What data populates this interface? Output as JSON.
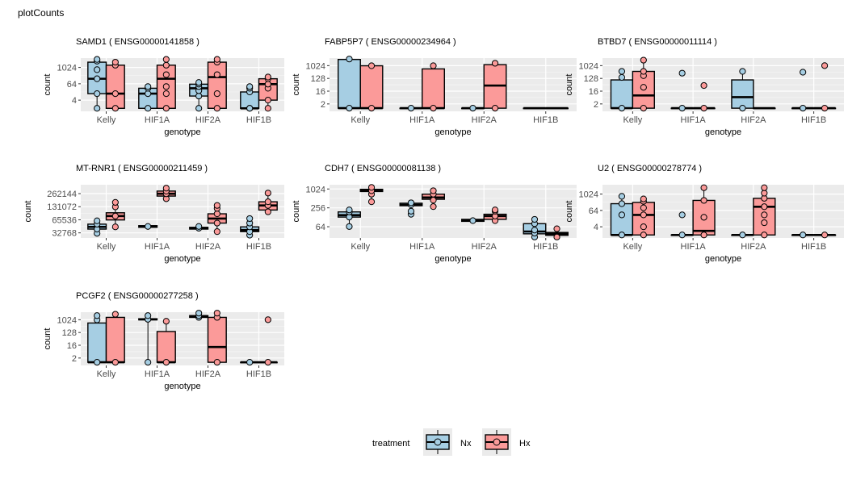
{
  "page": {
    "title": "plotCounts"
  },
  "legend": {
    "title": "treatment",
    "items": [
      {
        "label": "Nx",
        "color": "#a6cee3"
      },
      {
        "label": "Hx",
        "color": "#fb9a99"
      }
    ]
  },
  "chart_data": [
    {
      "type": "boxplot",
      "title": "SAMD1 ( ENSG00000141858 )",
      "xlabel": "genotype",
      "ylabel": "count",
      "log_scale": true,
      "categories": [
        "Kelly",
        "HIF1A",
        "HIF2A",
        "HIF1B"
      ],
      "yticks": [
        4,
        64,
        1024
      ],
      "ylim": [
        0.6,
        5000
      ],
      "series": [
        {
          "name": "Nx",
          "boxes": [
            {
              "q1": 12,
              "median": 150,
              "q3": 2500,
              "min": 1,
              "max": 5000,
              "points": [
                1,
                12,
                150,
                700,
                3000,
                4000
              ]
            },
            {
              "q1": 1,
              "median": 12,
              "q3": 30,
              "min": 1,
              "max": 40,
              "points": [
                1,
                12,
                30,
                40
              ]
            },
            {
              "q1": 8,
              "median": 30,
              "q3": 60,
              "min": 1,
              "max": 80,
              "points": [
                1,
                8,
                20,
                40,
                60,
                80
              ]
            },
            {
              "q1": 1,
              "median": 1,
              "q3": 16,
              "min": 1,
              "max": 40,
              "points": [
                1,
                1,
                16,
                30,
                40
              ]
            }
          ]
        },
        {
          "name": "Hx",
          "boxes": [
            {
              "q1": 1,
              "median": 12,
              "q3": 1500,
              "min": 1,
              "max": 2500,
              "points": [
                1,
                12,
                1500,
                2500
              ]
            },
            {
              "q1": 1,
              "median": 150,
              "q3": 1500,
              "min": 1,
              "max": 4000,
              "points": [
                1,
                12,
                40,
                300,
                1500,
                4000
              ]
            },
            {
              "q1": 1,
              "median": 200,
              "q3": 2500,
              "min": 1,
              "max": 4000,
              "points": [
                1,
                12,
                300,
                2500,
                4000
              ]
            },
            {
              "q1": 4,
              "median": 60,
              "q3": 150,
              "min": 1,
              "max": 200,
              "points": [
                1,
                4,
                30,
                60,
                150,
                200
              ]
            }
          ]
        }
      ]
    },
    {
      "type": "boxplot",
      "title": "FABP5P7 ( ENSG00000234964 )",
      "xlabel": "genotype",
      "ylabel": "count",
      "log_scale": true,
      "categories": [
        "Kelly",
        "HIF1A",
        "HIF2A",
        "HIF1B"
      ],
      "yticks": [
        2,
        16,
        128,
        1024
      ],
      "ylim": [
        0.6,
        3500
      ],
      "series": [
        {
          "name": "Nx",
          "boxes": [
            {
              "q1": 1,
              "median": 1,
              "q3": 2800,
              "min": 1,
              "max": 3000,
              "points": [
                1,
                3000
              ]
            },
            {
              "q1": 1,
              "median": 1,
              "q3": 1,
              "min": 1,
              "max": 1,
              "points": [
                1
              ]
            },
            {
              "q1": 1,
              "median": 1,
              "q3": 1,
              "min": 1,
              "max": 1,
              "points": [
                1
              ]
            },
            {
              "q1": 1,
              "median": 1,
              "q3": 1,
              "min": 1,
              "max": 1,
              "points": []
            }
          ]
        },
        {
          "name": "Hx",
          "boxes": [
            {
              "q1": 1,
              "median": 1,
              "q3": 1000,
              "min": 1,
              "max": 1000,
              "points": [
                1,
                1000
              ]
            },
            {
              "q1": 1,
              "median": 1,
              "q3": 600,
              "min": 1,
              "max": 1000,
              "points": [
                1,
                1000
              ]
            },
            {
              "q1": 1,
              "median": 40,
              "q3": 1200,
              "min": 1,
              "max": 1500,
              "points": [
                1,
                1500
              ]
            },
            {
              "q1": 1,
              "median": 1,
              "q3": 1,
              "min": 1,
              "max": 1,
              "points": []
            }
          ]
        }
      ]
    },
    {
      "type": "boxplot",
      "title": "BTBD7 ( ENSG00000011114 )",
      "xlabel": "genotype",
      "ylabel": "count",
      "log_scale": true,
      "categories": [
        "Kelly",
        "HIF1A",
        "HIF2A",
        "HIF1B"
      ],
      "yticks": [
        2,
        16,
        128,
        1024
      ],
      "ylim": [
        0.6,
        3500
      ],
      "series": [
        {
          "name": "Nx",
          "boxes": [
            {
              "q1": 1,
              "median": 1,
              "q3": 100,
              "min": 1,
              "max": 400,
              "points": [
                1,
                150,
                400
              ]
            },
            {
              "q1": 1,
              "median": 1,
              "q3": 1,
              "min": 1,
              "max": 1,
              "points": [
                1,
                300
              ]
            },
            {
              "q1": 1,
              "median": 6,
              "q3": 100,
              "min": 1,
              "max": 400,
              "points": [
                1,
                400
              ]
            },
            {
              "q1": 1,
              "median": 1,
              "q3": 1,
              "min": 1,
              "max": 1,
              "points": [
                1,
                350
              ]
            }
          ]
        },
        {
          "name": "Hx",
          "boxes": [
            {
              "q1": 1,
              "median": 8,
              "q3": 400,
              "min": 1,
              "max": 2500,
              "points": [
                1,
                30,
                200,
                400,
                2500
              ]
            },
            {
              "q1": 1,
              "median": 1,
              "q3": 1,
              "min": 1,
              "max": 1,
              "points": [
                1,
                40
              ]
            },
            {
              "q1": 1,
              "median": 1,
              "q3": 1,
              "min": 1,
              "max": 1,
              "points": []
            },
            {
              "q1": 1,
              "median": 1,
              "q3": 1,
              "min": 1,
              "max": 1,
              "points": [
                1,
                1024
              ]
            }
          ]
        }
      ]
    },
    {
      "type": "boxplot",
      "title": "MT-RNR1 ( ENSG00000211459 )",
      "xlabel": "genotype",
      "ylabel": "count",
      "log_scale": true,
      "categories": [
        "Kelly",
        "HIF1A",
        "HIF2A",
        "HIF1B"
      ],
      "yticks": [
        32768,
        65536,
        131072,
        262144
      ],
      "ylim": [
        25000,
        420000
      ],
      "series": [
        {
          "name": "Nx",
          "boxes": [
            {
              "q1": 40000,
              "median": 45000,
              "q3": 52000,
              "min": 32000,
              "max": 62000,
              "points": [
                32000,
                40000,
                52000,
                62000
              ]
            },
            {
              "q1": 44000,
              "median": 46000,
              "q3": 48000,
              "min": 44000,
              "max": 48000,
              "points": [
                46000
              ]
            },
            {
              "q1": 40000,
              "median": 42000,
              "q3": 44000,
              "min": 39000,
              "max": 48000,
              "points": [
                42000,
                46000
              ]
            },
            {
              "q1": 35000,
              "median": 38000,
              "q3": 45000,
              "min": 29000,
              "max": 70000,
              "points": [
                29000,
                35000,
                45000,
                55000,
                70000
              ]
            }
          ]
        },
        {
          "name": "Hx",
          "boxes": [
            {
              "q1": 65000,
              "median": 80000,
              "q3": 95000,
              "min": 45000,
              "max": 165000,
              "points": [
                45000,
                80000,
                130000,
                165000
              ]
            },
            {
              "q1": 230000,
              "median": 260000,
              "q3": 300000,
              "min": 200000,
              "max": 350000,
              "points": [
                200000,
                260000,
                300000,
                350000
              ]
            },
            {
              "q1": 55000,
              "median": 70000,
              "q3": 90000,
              "min": 35000,
              "max": 140000,
              "points": [
                35000,
                55000,
                90000,
                120000,
                140000
              ]
            },
            {
              "q1": 110000,
              "median": 140000,
              "q3": 170000,
              "min": 100000,
              "max": 270000,
              "points": [
                100000,
                140000,
                170000,
                270000
              ]
            }
          ]
        }
      ]
    },
    {
      "type": "boxplot",
      "title": "CDH7 ( ENSG00000081138 )",
      "xlabel": "genotype",
      "ylabel": "count",
      "log_scale": true,
      "categories": [
        "Kelly",
        "HIF1A",
        "HIF2A",
        "HIF1B"
      ],
      "yticks": [
        64,
        256,
        1024
      ],
      "ylim": [
        28,
        1400
      ],
      "series": [
        {
          "name": "Nx",
          "boxes": [
            {
              "q1": 130,
              "median": 150,
              "q3": 190,
              "min": 65,
              "max": 220,
              "points": [
                65,
                130,
                190,
                220
              ]
            },
            {
              "q1": 300,
              "median": 320,
              "q3": 360,
              "min": 160,
              "max": 370,
              "points": [
                160,
                200,
                320,
                370
              ]
            },
            {
              "q1": 95,
              "median": 100,
              "q3": 110,
              "min": 90,
              "max": 110,
              "points": [
                100
              ]
            },
            {
              "q1": 38,
              "median": 45,
              "q3": 80,
              "min": 30,
              "max": 110,
              "points": [
                30,
                40,
                50,
                80,
                110
              ]
            }
          ]
        },
        {
          "name": "Hx",
          "boxes": [
            {
              "q1": 850,
              "median": 900,
              "q3": 1000,
              "min": 400,
              "max": 1150,
              "points": [
                400,
                700,
                900,
                1150
              ]
            },
            {
              "q1": 480,
              "median": 550,
              "q3": 700,
              "min": 280,
              "max": 900,
              "points": [
                280,
                450,
                700,
                900
              ]
            },
            {
              "q1": 110,
              "median": 140,
              "q3": 160,
              "min": 100,
              "max": 220,
              "points": [
                100,
                140,
                200,
                220
              ]
            },
            {
              "q1": 34,
              "median": 38,
              "q3": 42,
              "min": 30,
              "max": 55,
              "points": [
                30,
                55
              ]
            }
          ]
        }
      ]
    },
    {
      "type": "boxplot",
      "title": "U2 ( ENSG00000278774 )",
      "xlabel": "genotype",
      "ylabel": "count",
      "log_scale": true,
      "categories": [
        "Kelly",
        "HIF1A",
        "HIF2A",
        "HIF1B"
      ],
      "yticks": [
        4,
        64,
        1024
      ],
      "ylim": [
        0.6,
        5000
      ],
      "series": [
        {
          "name": "Nx",
          "boxes": [
            {
              "q1": 1,
              "median": 1,
              "q3": 200,
              "min": 1,
              "max": 700,
              "points": [
                1,
                30,
                200,
                700
              ]
            },
            {
              "q1": 1,
              "median": 1,
              "q3": 1,
              "min": 1,
              "max": 1,
              "points": [
                1,
                30
              ]
            },
            {
              "q1": 1,
              "median": 1,
              "q3": 1,
              "min": 1,
              "max": 1,
              "points": [
                1
              ]
            },
            {
              "q1": 1,
              "median": 1,
              "q3": 1,
              "min": 1,
              "max": 1,
              "points": [
                1
              ]
            }
          ]
        },
        {
          "name": "Hx",
          "boxes": [
            {
              "q1": 1,
              "median": 30,
              "q3": 250,
              "min": 1,
              "max": 450,
              "points": [
                1,
                4,
                30,
                100,
                300,
                450
              ]
            },
            {
              "q1": 1,
              "median": 2,
              "q3": 350,
              "min": 1,
              "max": 3000,
              "points": [
                1,
                20,
                350,
                3000
              ]
            },
            {
              "q1": 1,
              "median": 120,
              "q3": 500,
              "min": 1,
              "max": 3000,
              "points": [
                1,
                8,
                30,
                120,
                500,
                1200,
                3000
              ]
            },
            {
              "q1": 1,
              "median": 1,
              "q3": 1,
              "min": 1,
              "max": 1,
              "points": [
                1
              ]
            }
          ]
        }
      ]
    },
    {
      "type": "boxplot",
      "title": "PCGF2 ( ENSG00000277258 )",
      "xlabel": "genotype",
      "ylabel": "count",
      "log_scale": true,
      "categories": [
        "Kelly",
        "HIF1A",
        "HIF2A",
        "HIF1B"
      ],
      "yticks": [
        2,
        16,
        128,
        1024
      ],
      "ylim": [
        0.6,
        3500
      ],
      "series": [
        {
          "name": "Nx",
          "boxes": [
            {
              "q1": 1,
              "median": 1,
              "q3": 600,
              "min": 1,
              "max": 2000,
              "points": [
                1,
                1000,
                2000
              ]
            },
            {
              "q1": 1000,
              "median": 1100,
              "q3": 1200,
              "min": 1,
              "max": 2000,
              "points": [
                1,
                1100,
                2000
              ]
            },
            {
              "q1": 1500,
              "median": 1800,
              "q3": 2000,
              "min": 1400,
              "max": 3000,
              "points": [
                1500,
                2000,
                3000
              ]
            },
            {
              "q1": 1,
              "median": 1,
              "q3": 1,
              "min": 1,
              "max": 1,
              "points": [
                1
              ]
            }
          ]
        },
        {
          "name": "Hx",
          "boxes": [
            {
              "q1": 1,
              "median": 1,
              "q3": 1500,
              "min": 1,
              "max": 2500,
              "points": [
                1,
                2500
              ]
            },
            {
              "q1": 1,
              "median": 1,
              "q3": 150,
              "min": 1,
              "max": 800,
              "points": [
                1,
                800
              ]
            },
            {
              "q1": 1,
              "median": 12,
              "q3": 1500,
              "min": 1,
              "max": 3000,
              "points": [
                1,
                1500,
                3000
              ]
            },
            {
              "q1": 1,
              "median": 1,
              "q3": 1,
              "min": 1,
              "max": 1,
              "points": [
                1,
                1024
              ]
            }
          ]
        }
      ]
    }
  ]
}
